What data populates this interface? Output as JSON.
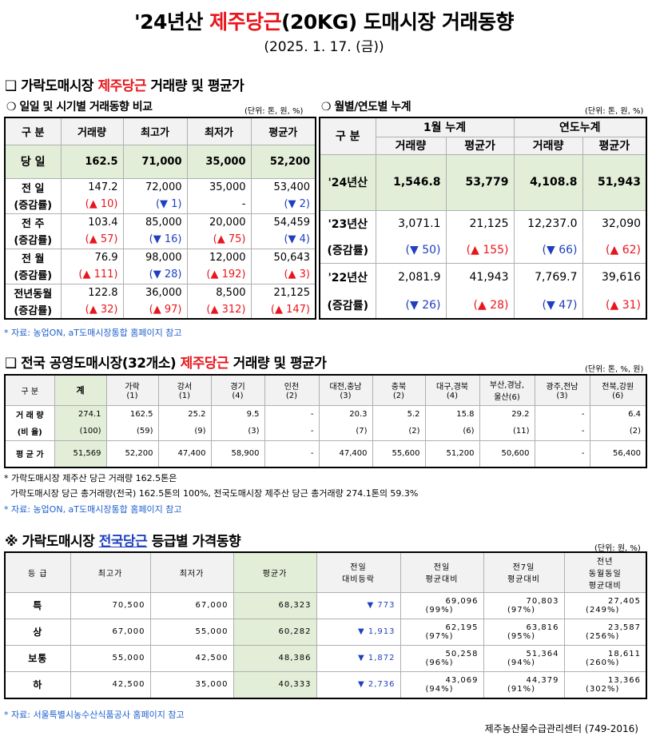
{
  "title": {
    "prefix": "'24년산 ",
    "highlight": "제주당근",
    "suffix": "(20KG) 도매시장 거래동향"
  },
  "date": "(2025. 1. 17. (금))",
  "section1": {
    "bullet": "❑",
    "title_prefix": " 가락도매시장 ",
    "title_highlight": "제주당근",
    "title_suffix": " 거래량 및 평균가",
    "left_subtitle": "❍ 일일 및 시기별 거래동향 비교",
    "left_unit": "(단위: 톤, 원, %)",
    "left_headers": [
      "구  분",
      "거래량",
      "최고가",
      "최저가",
      "평균가"
    ],
    "today": {
      "label": "당  일",
      "values": [
        "162.5",
        "71,000",
        "35,000",
        "52,200"
      ]
    },
    "rows": [
      {
        "label": "전  일",
        "sub": "(증감률)",
        "values": [
          "147.2",
          "72,000",
          "35,000",
          "53,400"
        ],
        "changes": [
          "(▲ 10)",
          "(▼ 1)",
          "-",
          "(▼ 2)"
        ],
        "dirs": [
          "up",
          "dn",
          "",
          "dn"
        ]
      },
      {
        "label": "전  주",
        "sub": "(증감률)",
        "values": [
          "103.4",
          "85,000",
          "20,000",
          "54,459"
        ],
        "changes": [
          "(▲ 57)",
          "(▼ 16)",
          "(▲ 75)",
          "(▼ 4)"
        ],
        "dirs": [
          "up",
          "dn",
          "up",
          "dn"
        ]
      },
      {
        "label": "전  월",
        "sub": "(증감률)",
        "values": [
          "76.9",
          "98,000",
          "12,000",
          "50,643"
        ],
        "changes": [
          "(▲ 111)",
          "(▼ 28)",
          "(▲ 192)",
          "(▲ 3)"
        ],
        "dirs": [
          "up",
          "dn",
          "up",
          "up"
        ]
      },
      {
        "label": "전년동월",
        "sub": "(증감률)",
        "values": [
          "122.8",
          "36,000",
          "8,500",
          "21,125"
        ],
        "changes": [
          "(▲ 32)",
          "(▲ 97)",
          "(▲ 312)",
          "(▲ 147)"
        ],
        "dirs": [
          "up",
          "up",
          "up",
          "up"
        ]
      }
    ],
    "right_subtitle": "❍ 월별/연도별 누계",
    "right_unit": "(단위: 톤, 원, %)",
    "right_headers": {
      "label": "구  분",
      "group1": "1월 누계",
      "group2": "연도누계",
      "cols": [
        "거래량",
        "평균가",
        "거래량",
        "평균가"
      ]
    },
    "y24": {
      "label": "'24년산",
      "values": [
        "1,546.8",
        "53,779",
        "4,108.8",
        "51,943"
      ]
    },
    "y23": {
      "label": "'23년산",
      "sub": "(증감률)",
      "values": [
        "3,071.1",
        "21,125",
        "12,237.0",
        "32,090"
      ],
      "changes": [
        "(▼ 50)",
        "(▲ 155)",
        "(▼ 66)",
        "(▲ 62)"
      ],
      "dirs": [
        "dn",
        "up",
        "dn",
        "up"
      ]
    },
    "y22": {
      "label": "'22년산",
      "sub": "(증감률)",
      "values": [
        "2,081.9",
        "41,943",
        "7,769.7",
        "39,616"
      ],
      "changes": [
        "(▼ 26)",
        "(▲ 28)",
        "(▼ 47)",
        "(▲ 31)"
      ],
      "dirs": [
        "dn",
        "up",
        "dn",
        "up"
      ]
    },
    "source": "* 자료: 농업ON, aT도매시장통합 홈페이지 참고"
  },
  "section2": {
    "bullet": "❑",
    "title_prefix": " 전국 공영도매시장(32개소) ",
    "title_highlight": "제주당근",
    "title_suffix": " 거래량 및 평균가",
    "unit": "(단위: 톤, %, 원)",
    "headers": [
      [
        "구  분",
        ""
      ],
      [
        "계",
        ""
      ],
      [
        "가락",
        "(1)"
      ],
      [
        "강서",
        "(1)"
      ],
      [
        "경기",
        "(4)"
      ],
      [
        "인천",
        "(2)"
      ],
      [
        "대전,충남",
        "(3)"
      ],
      [
        "충북",
        "(2)"
      ],
      [
        "대구,경북",
        "(4)"
      ],
      [
        "부산,경남,",
        "울산(6)"
      ],
      [
        "광주,전남",
        "(3)"
      ],
      [
        "전북,강원",
        "(6)"
      ]
    ],
    "volume": {
      "label": "거 래 량",
      "values": [
        "274.1",
        "162.5",
        "25.2",
        "9.5",
        "-",
        "20.3",
        "5.2",
        "15.8",
        "29.2",
        "-",
        "6.4"
      ]
    },
    "ratio": {
      "label": "(비 율)",
      "values": [
        "(100)",
        "(59)",
        "(9)",
        "(3)",
        "-",
        "(7)",
        "(2)",
        "(6)",
        "(11)",
        "-",
        "(2)"
      ]
    },
    "price": {
      "label": "평 균 가",
      "values": [
        "51,569",
        "52,200",
        "47,400",
        "58,900",
        "-",
        "47,400",
        "55,600",
        "51,200",
        "50,600",
        "-",
        "56,400"
      ]
    },
    "note1": "* 가락도매시장 제주산 당근 거래량 162.5톤은",
    "note2": "가락도매시장 당근 총거래량(전국) 162.5톤의 100%, 전국도매시장 제주산 당근 총거래량 274.1톤의 59.3%",
    "source": "* 자료: 농업ON, aT도매시장통합 홈페이지 참고"
  },
  "section3": {
    "bullet": "※",
    "title_prefix": " 가락도매시장 ",
    "title_highlight": "전국당근",
    "title_suffix": " 등급별 가격동향",
    "unit": "(단위: 원, %)",
    "headers": [
      [
        "등  급"
      ],
      [
        "최고가"
      ],
      [
        "최저가"
      ],
      [
        "평균가"
      ],
      [
        "전일",
        "대비등락"
      ],
      [
        "전일",
        "평균대비"
      ],
      [
        "전7일",
        "평균대비"
      ],
      [
        "전년",
        "동월동일",
        "평균대비"
      ]
    ],
    "rows": [
      {
        "grade": "특",
        "max": "70,500",
        "min": "67,000",
        "avg": "68,323",
        "diff": "▼ 773",
        "d1": "69,096",
        "d1p": "(99%)",
        "d7": "70,803",
        "d7p": "(97%)",
        "dy": "27,405",
        "dyp": "(249%)"
      },
      {
        "grade": "상",
        "max": "67,000",
        "min": "55,000",
        "avg": "60,282",
        "diff": "▼ 1,913",
        "d1": "62,195",
        "d1p": "(97%)",
        "d7": "63,816",
        "d7p": "(95%)",
        "dy": "23,587",
        "dyp": "(256%)"
      },
      {
        "grade": "보통",
        "max": "55,000",
        "min": "42,500",
        "avg": "48,386",
        "diff": "▼ 1,872",
        "d1": "50,258",
        "d1p": "(96%)",
        "d7": "51,364",
        "d7p": "(94%)",
        "dy": "18,611",
        "dyp": "(260%)"
      },
      {
        "grade": "하",
        "max": "42,500",
        "min": "35,000",
        "avg": "40,333",
        "diff": "▼ 2,736",
        "d1": "43,069",
        "d1p": "(94%)",
        "d7": "44,379",
        "d7p": "(91%)",
        "dy": "13,366",
        "dyp": "(302%)"
      }
    ],
    "source": "* 자료: 서울특별시농수산식품공사 홈페이지 참고"
  },
  "footer": "제주농산물수급관리센터 (749-2016)",
  "colors": {
    "highlight_red": "#e8161c",
    "highlight_blue": "#1f3fbf",
    "header_bg": "#f2f2f2",
    "today_bg": "#e2eed8"
  }
}
